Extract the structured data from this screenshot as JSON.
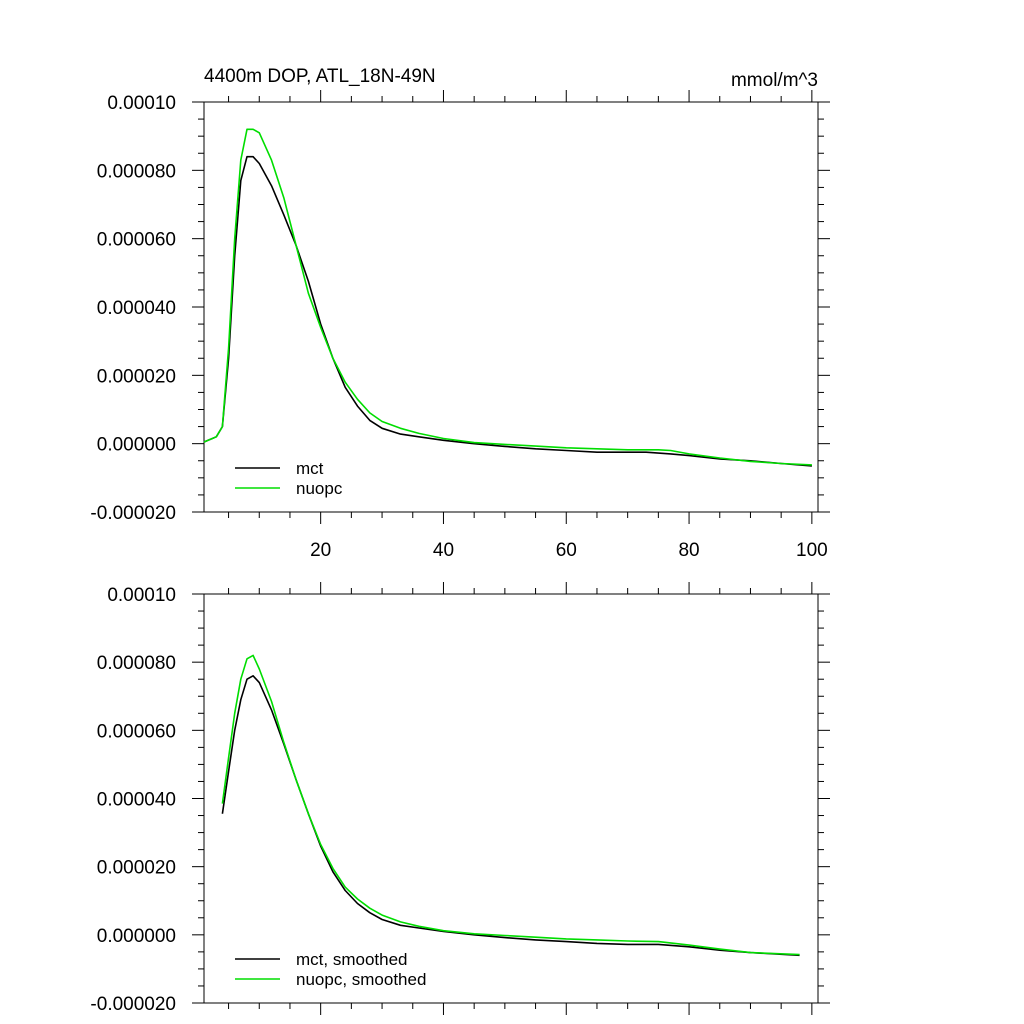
{
  "chart_data": [
    {
      "type": "line",
      "title": "4400m DOP, ATL_18N-49N",
      "units": "mmol/m^3",
      "xlim": [
        1,
        101
      ],
      "ylim": [
        -2e-05,
        0.0001
      ],
      "x_ticks": [
        20,
        40,
        60,
        80,
        100
      ],
      "x_tick_labels": [
        "20",
        "40",
        "60",
        "80",
        "100"
      ],
      "show_x_tick_labels": true,
      "y_ticks": [
        -2e-05,
        0,
        2e-05,
        4e-05,
        6e-05,
        8e-05,
        0.0001
      ],
      "y_tick_labels": [
        "-0.000020",
        "0.000000",
        "0.000020",
        "0.000040",
        "0.000060",
        "0.000080",
        "0.00010"
      ],
      "legend": "bottom-left",
      "series": [
        {
          "name": "mct",
          "color": "#000000",
          "x": [
            1,
            3,
            4,
            5,
            6,
            7,
            8,
            9,
            10,
            12,
            14,
            16,
            18,
            20,
            22,
            24,
            26,
            28,
            30,
            33,
            36,
            40,
            45,
            50,
            55,
            60,
            65,
            70,
            73,
            77,
            80,
            85,
            90,
            95,
            100
          ],
          "y": [
            5e-07,
            2e-06,
            5e-06,
            2.5e-05,
            5.5e-05,
            7.7e-05,
            8.4e-05,
            8.4e-05,
            8.2e-05,
            7.55e-05,
            6.7e-05,
            5.8e-05,
            4.75e-05,
            3.5e-05,
            2.5e-05,
            1.65e-05,
            1.1e-05,
            6.8e-06,
            4.5e-06,
            2.8e-06,
            2e-06,
            1e-06,
            0,
            -8e-07,
            -1.5e-06,
            -2e-06,
            -2.5e-06,
            -2.5e-06,
            -2.5e-06,
            -3e-06,
            -3.5e-06,
            -4.5e-06,
            -5e-06,
            -5.8e-06,
            -6.5e-06
          ]
        },
        {
          "name": "nuopc",
          "color": "#00dd00",
          "x": [
            1,
            3,
            4,
            5,
            6,
            7,
            8,
            9,
            10,
            12,
            14,
            16,
            18,
            20,
            22,
            24,
            26,
            28,
            30,
            33,
            36,
            40,
            45,
            50,
            55,
            60,
            65,
            70,
            75,
            77,
            80,
            85,
            90,
            95,
            100
          ],
          "y": [
            5e-07,
            2e-06,
            5e-06,
            2.8e-05,
            6e-05,
            8.3e-05,
            9.2e-05,
            9.2e-05,
            9.1e-05,
            8.3e-05,
            7.2e-05,
            5.8e-05,
            4.4e-05,
            3.4e-05,
            2.5e-05,
            1.8e-05,
            1.3e-05,
            9e-06,
            6.5e-06,
            4.5e-06,
            3e-06,
            1.5e-06,
            3e-07,
            -2e-07,
            -7e-07,
            -1.2e-06,
            -1.5e-06,
            -1.8e-06,
            -1.8e-06,
            -2e-06,
            -3e-06,
            -4.2e-06,
            -5.2e-06,
            -5.8e-06,
            -6.2e-06
          ]
        }
      ]
    },
    {
      "type": "line",
      "xlim": [
        1,
        101
      ],
      "ylim": [
        -2e-05,
        0.0001
      ],
      "x_ticks": [
        20,
        40,
        60,
        80,
        100
      ],
      "show_x_tick_labels": false,
      "y_ticks": [
        -2e-05,
        0,
        2e-05,
        4e-05,
        6e-05,
        8e-05,
        0.0001
      ],
      "y_tick_labels": [
        "-0.000020",
        "0.000000",
        "0.000020",
        "0.000040",
        "0.000060",
        "0.000080",
        "0.00010"
      ],
      "legend": "bottom-left",
      "series": [
        {
          "name": "mct, smoothed",
          "color": "#000000",
          "x": [
            4,
            5,
            6,
            7,
            8,
            9,
            10,
            12,
            14,
            16,
            18,
            20,
            22,
            24,
            26,
            28,
            30,
            33,
            36,
            40,
            45,
            50,
            55,
            60,
            65,
            70,
            75,
            80,
            85,
            90,
            98
          ],
          "y": [
            3.55e-05,
            4.8e-05,
            6e-05,
            6.9e-05,
            7.5e-05,
            7.6e-05,
            7.4e-05,
            6.6e-05,
            5.6e-05,
            4.55e-05,
            3.55e-05,
            2.6e-05,
            1.85e-05,
            1.3e-05,
            9.2e-06,
            6.5e-06,
            4.5e-06,
            2.8e-06,
            2e-06,
            1e-06,
            0,
            -8e-07,
            -1.5e-06,
            -2e-06,
            -2.5e-06,
            -2.8e-06,
            -2.8e-06,
            -3.5e-06,
            -4.5e-06,
            -5.2e-06,
            -6e-06
          ]
        },
        {
          "name": "nuopc, smoothed",
          "color": "#00dd00",
          "x": [
            4,
            5,
            6,
            7,
            8,
            9,
            10,
            12,
            14,
            16,
            18,
            20,
            22,
            24,
            26,
            28,
            30,
            33,
            36,
            40,
            45,
            50,
            55,
            60,
            65,
            70,
            75,
            80,
            85,
            90,
            98
          ],
          "y": [
            3.85e-05,
            5.2e-05,
            6.5e-05,
            7.5e-05,
            8.1e-05,
            8.2e-05,
            7.8e-05,
            6.85e-05,
            5.65e-05,
            4.55e-05,
            3.55e-05,
            2.65e-05,
            1.95e-05,
            1.4e-05,
            1.05e-05,
            7.8e-06,
            5.8e-06,
            3.8e-06,
            2.5e-06,
            1.2e-06,
            3e-07,
            -2e-07,
            -7e-07,
            -1.2e-06,
            -1.5e-06,
            -1.8e-06,
            -2e-06,
            -3e-06,
            -4.2e-06,
            -5.2e-06,
            -5.8e-06
          ]
        }
      ]
    }
  ]
}
